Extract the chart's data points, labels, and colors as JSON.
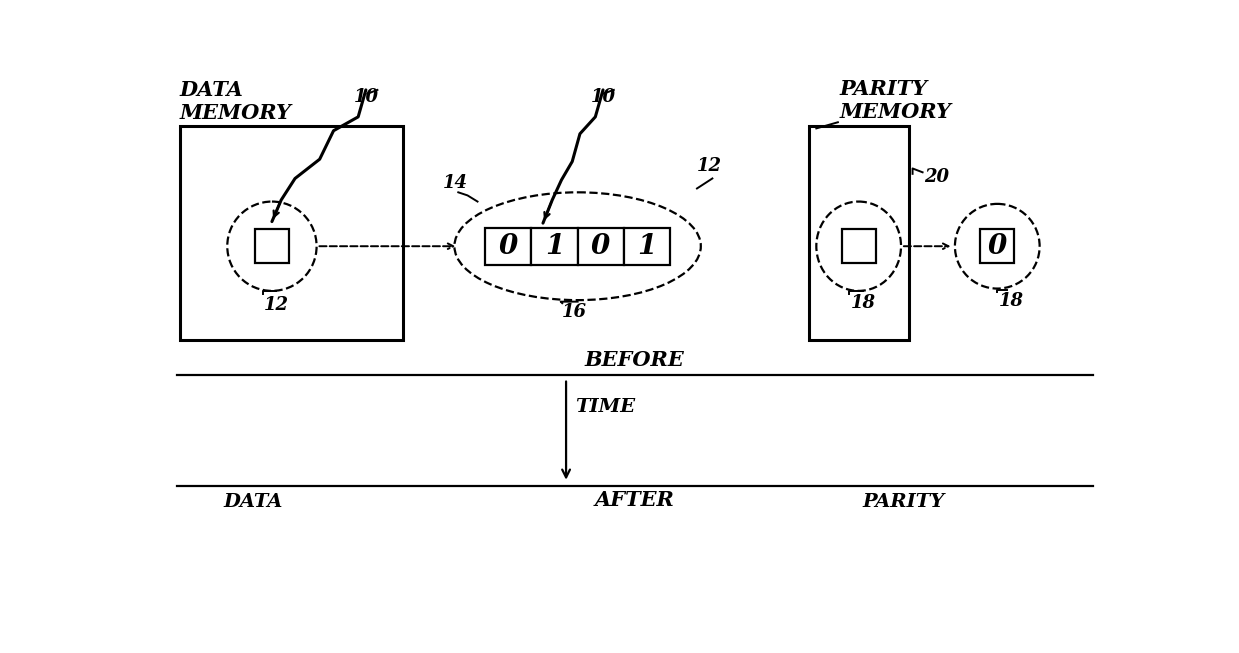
{
  "bg_color": "#ffffff",
  "line_color": "#000000",
  "data_memory_label": "DATA\nMEMORY",
  "parity_memory_label": "PARITY\nMEMORY",
  "before_label": "BEFORE",
  "after_label": "AFTER",
  "time_label": "TIME",
  "bits": [
    "0",
    "1",
    "0",
    "1"
  ],
  "parity_bit": "0",
  "ref_10_left": "10",
  "ref_10_center": "10",
  "ref_12_left": "12",
  "ref_12_center": "12",
  "ref_14": "14",
  "ref_16": "16",
  "ref_18_left": "18",
  "ref_18_right": "18",
  "ref_20": "20",
  "bottom_data": "DATA",
  "bottom_parity": "PARITY"
}
